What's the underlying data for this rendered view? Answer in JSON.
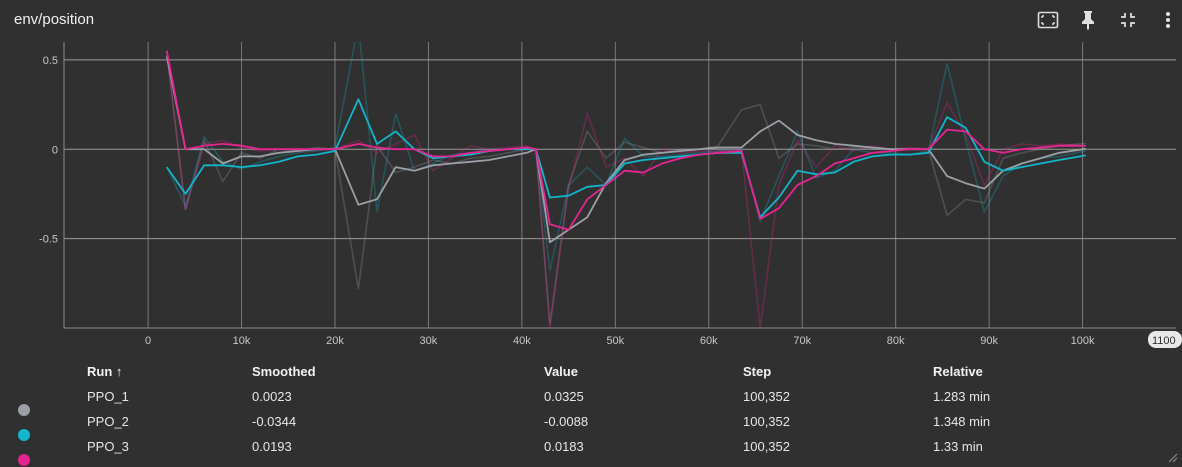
{
  "card": {
    "title": "env/position",
    "tools": [
      {
        "name": "fit-domain-icon"
      },
      {
        "name": "pin-icon"
      },
      {
        "name": "collapse-icon"
      },
      {
        "name": "more-vertical-icon"
      }
    ]
  },
  "chart_data": {
    "type": "line",
    "title": "",
    "xlabel": "",
    "ylabel": "",
    "xlim": [
      -9000,
      110000
    ],
    "ylim": [
      -1,
      0.6
    ],
    "grid": true,
    "x_ticks": [
      0,
      10000,
      20000,
      30000,
      40000,
      50000,
      60000,
      70000,
      80000,
      90000,
      100000
    ],
    "x_tick_labels": [
      "0",
      "10k",
      "20k",
      "30k",
      "40k",
      "50k",
      "60k",
      "70k",
      "80k",
      "90k",
      "100k"
    ],
    "x_edge_label": "1100",
    "y_ticks": [
      0.5,
      0,
      -0.5
    ],
    "y_tick_labels": [
      "0.5",
      "0",
      "-0.5"
    ],
    "x": [
      2000,
      4000,
      6000,
      8000,
      10000,
      12000,
      14000,
      16000,
      18000,
      20000,
      22500,
      24500,
      26500,
      28500,
      30500,
      32500,
      34500,
      36500,
      38500,
      40500,
      41500,
      43000,
      45000,
      47000,
      49000,
      51000,
      53000,
      55000,
      57000,
      59000,
      61000,
      63500,
      65500,
      67500,
      69500,
      71500,
      73500,
      75500,
      77500,
      79500,
      81500,
      83500,
      85500,
      87500,
      89500,
      91500,
      93500,
      95500,
      97500,
      100352
    ],
    "series": [
      {
        "name": "PPO_1",
        "color": "#9aa0a6",
        "smoothed": [
          0.52,
          0.0,
          0.0,
          -0.08,
          -0.04,
          -0.04,
          -0.02,
          -0.01,
          0.0,
          0.0,
          -0.31,
          -0.28,
          -0.1,
          -0.12,
          -0.09,
          -0.08,
          -0.07,
          -0.06,
          -0.04,
          -0.02,
          0.0,
          -0.52,
          -0.45,
          -0.38,
          -0.19,
          -0.06,
          -0.03,
          -0.02,
          -0.01,
          0.0,
          0.01,
          0.01,
          0.1,
          0.16,
          0.08,
          0.05,
          0.03,
          0.02,
          0.01,
          0.0,
          0.0,
          0.0,
          -0.15,
          -0.19,
          -0.22,
          -0.12,
          -0.08,
          -0.05,
          -0.02,
          0.0023
        ],
        "raw": [
          0.55,
          -0.34,
          0.05,
          -0.18,
          -0.02,
          -0.05,
          0.0,
          -0.01,
          0.01,
          0.0,
          -0.78,
          0.02,
          -0.13,
          -0.1,
          -0.06,
          -0.08,
          -0.05,
          -0.04,
          -0.02,
          0.0,
          0.0,
          -0.98,
          -0.2,
          0.1,
          -0.05,
          0.04,
          0.01,
          -0.02,
          0.0,
          0.0,
          0.02,
          0.22,
          0.25,
          -0.05,
          0.03,
          0.02,
          0.0,
          0.01,
          0.0,
          0.0,
          0.0,
          0.0,
          -0.37,
          -0.28,
          -0.3,
          -0.05,
          -0.02,
          0.0,
          0.02,
          0.0325
        ]
      },
      {
        "name": "PPO_2",
        "color": "#12b5cb",
        "smoothed": [
          -0.1,
          -0.25,
          -0.09,
          -0.09,
          -0.1,
          -0.09,
          -0.07,
          -0.04,
          -0.03,
          -0.01,
          0.28,
          0.03,
          0.1,
          0.0,
          -0.05,
          -0.04,
          -0.03,
          -0.01,
          0.0,
          0.0,
          0.0,
          -0.27,
          -0.26,
          -0.21,
          -0.2,
          -0.08,
          -0.06,
          -0.05,
          -0.04,
          -0.03,
          -0.02,
          -0.02,
          -0.38,
          -0.27,
          -0.12,
          -0.14,
          -0.13,
          -0.07,
          -0.04,
          -0.03,
          -0.03,
          -0.02,
          0.18,
          0.12,
          -0.07,
          -0.12,
          -0.1,
          -0.08,
          -0.06,
          -0.0344
        ],
        "raw": [
          -0.1,
          -0.32,
          0.07,
          -0.07,
          -0.11,
          -0.07,
          -0.04,
          -0.02,
          -0.01,
          0.01,
          0.7,
          -0.35,
          0.2,
          -0.12,
          -0.08,
          -0.03,
          -0.02,
          0.0,
          0.0,
          0.0,
          0.0,
          -0.68,
          -0.2,
          -0.1,
          -0.2,
          0.06,
          -0.04,
          -0.04,
          -0.03,
          -0.02,
          -0.01,
          0.0,
          -0.4,
          -0.15,
          0.1,
          -0.16,
          -0.12,
          0.0,
          -0.02,
          -0.02,
          -0.03,
          -0.01,
          0.48,
          0.05,
          -0.35,
          -0.15,
          -0.08,
          -0.05,
          -0.04,
          -0.0088
        ]
      },
      {
        "name": "PPO_3",
        "color": "#e52592",
        "smoothed": [
          0.55,
          0.0,
          0.02,
          0.03,
          0.02,
          0.0,
          0.0,
          0.0,
          0.0,
          0.0,
          0.03,
          0.01,
          0.0,
          0.0,
          -0.04,
          -0.04,
          -0.02,
          -0.01,
          0.0,
          0.01,
          0.0,
          -0.42,
          -0.45,
          -0.28,
          -0.2,
          -0.12,
          -0.13,
          -0.08,
          -0.05,
          -0.03,
          -0.02,
          -0.01,
          -0.39,
          -0.33,
          -0.2,
          -0.15,
          -0.08,
          -0.05,
          -0.02,
          -0.01,
          0.0,
          0.0,
          0.11,
          0.1,
          0.0,
          -0.02,
          0.0,
          0.01,
          0.02,
          0.0193
        ],
        "raw": [
          0.53,
          -0.34,
          0.03,
          0.05,
          0.01,
          -0.01,
          0.0,
          0.0,
          0.0,
          0.0,
          0.05,
          -0.02,
          0.03,
          0.08,
          -0.12,
          -0.05,
          0.02,
          0.0,
          0.01,
          0.02,
          0.0,
          -1.0,
          -0.22,
          0.2,
          -0.1,
          -0.05,
          -0.15,
          0.0,
          -0.02,
          -0.01,
          -0.01,
          0.0,
          -1.0,
          -0.2,
          0.05,
          -0.1,
          0.02,
          -0.01,
          0.02,
          0.0,
          0.01,
          0.0,
          0.26,
          0.08,
          -0.2,
          0.0,
          0.03,
          0.02,
          0.03,
          0.0183
        ]
      }
    ]
  },
  "table": {
    "headers": {
      "run": "Run ↑",
      "smoothed": "Smoothed",
      "value": "Value",
      "step": "Step",
      "relative": "Relative"
    },
    "rows": [
      {
        "run": "PPO_1",
        "smoothed": "0.0023",
        "value": "0.0325",
        "step": "100,352",
        "relative": "1.283 min",
        "color": "#9aa0a6"
      },
      {
        "run": "PPO_2",
        "smoothed": "-0.0344",
        "value": "-0.0088",
        "step": "100,352",
        "relative": "1.348 min",
        "color": "#12b5cb"
      },
      {
        "run": "PPO_3",
        "smoothed": "0.0193",
        "value": "0.0183",
        "step": "100,352",
        "relative": "1.33 min",
        "color": "#e52592"
      }
    ]
  }
}
